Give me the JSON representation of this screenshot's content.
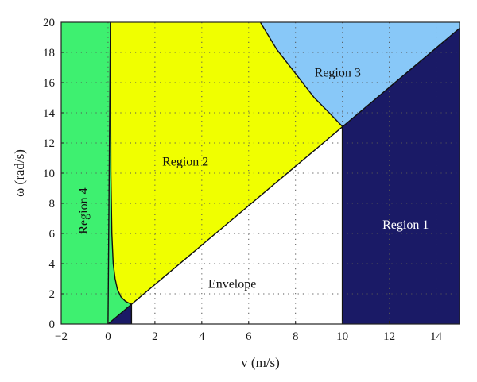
{
  "chart_data": {
    "type": "area",
    "xlabel": "v (m/s)",
    "ylabel": "ω (rad/s)",
    "xlim": [
      -2,
      15
    ],
    "ylim": [
      0,
      20
    ],
    "xticks": [
      -2,
      0,
      2,
      4,
      6,
      8,
      10,
      12,
      14
    ],
    "yticks": [
      0,
      2,
      4,
      6,
      8,
      10,
      12,
      14,
      16,
      18,
      20
    ],
    "grid": "dotted",
    "colors": {
      "region1": "#1a1a66",
      "region2": "#f0ff00",
      "region3": "#88c8f8",
      "region4": "#3ef070",
      "envelope": "#ffffff"
    },
    "boundaries": {
      "diagonal_line": {
        "x": [
          0,
          15
        ],
        "y": [
          0,
          19.6
        ]
      },
      "envelope_right_edge": {
        "x": 10,
        "y": [
          0,
          13.1
        ]
      },
      "envelope_bottom_left": {
        "x": 1,
        "y": [
          0,
          1.3
        ]
      },
      "left_curve": {
        "x": [
          0.1,
          0.12,
          0.16,
          0.22,
          0.3,
          0.4,
          0.55,
          0.75,
          1.0
        ],
        "y": [
          20,
          10,
          6,
          4,
          3,
          2.3,
          1.8,
          1.5,
          1.3
        ]
      },
      "upper_curve": {
        "x": [
          6.5,
          7.2,
          8.0,
          8.8,
          9.5,
          10.0
        ],
        "y": [
          20,
          18.2,
          16.6,
          15.0,
          13.9,
          13.1
        ]
      }
    },
    "regions": [
      {
        "key": "region4",
        "label": "Region 4",
        "label_at": [
          -1.0,
          7.5
        ],
        "vertical": true,
        "text_color": "#111111"
      },
      {
        "key": "region2",
        "label": "Region 2",
        "label_at": [
          3.3,
          10.7
        ],
        "vertical": false,
        "text_color": "#111111"
      },
      {
        "key": "region3",
        "label": "Region 3",
        "label_at": [
          9.8,
          16.6
        ],
        "vertical": false,
        "text_color": "#111111"
      },
      {
        "key": "region1",
        "label": "Region 1",
        "label_at": [
          12.7,
          6.5
        ],
        "vertical": false,
        "text_color": "#ffffff"
      },
      {
        "key": "envelope",
        "label": "Envelope",
        "label_at": [
          5.3,
          2.6
        ],
        "vertical": false,
        "text_color": "#111111"
      }
    ]
  }
}
